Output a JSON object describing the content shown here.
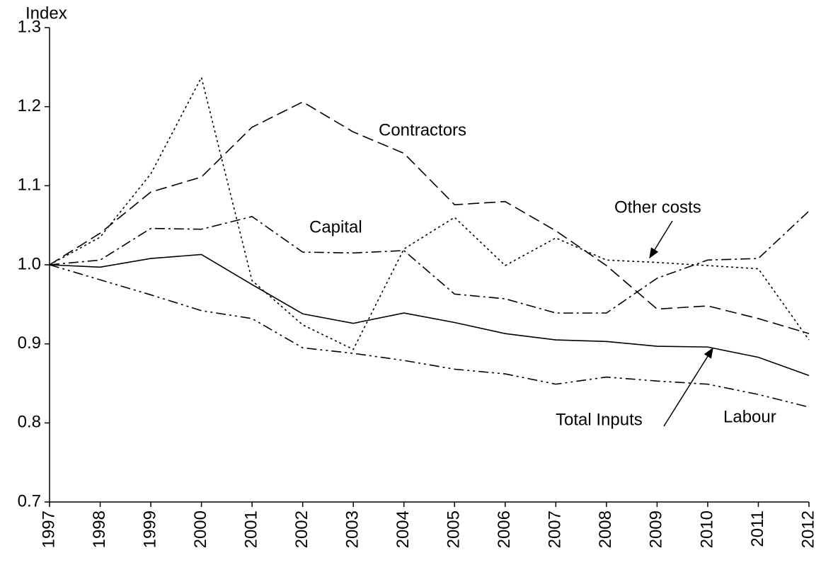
{
  "chart_data": {
    "type": "line",
    "y_axis_label": "Index",
    "categories": [
      "1997",
      "1998",
      "1999",
      "2000",
      "2001",
      "2002",
      "2003",
      "2004",
      "2005",
      "2006",
      "2007",
      "2008",
      "2009",
      "2010",
      "2011",
      "2012"
    ],
    "ylim": [
      0.7,
      1.3
    ],
    "yticks": [
      0.7,
      0.8,
      0.9,
      {
        "value": 1.0,
        "label": "1.0"
      },
      1.1,
      1.2,
      1.3
    ],
    "grid": false,
    "series": [
      {
        "name": "Total Inputs",
        "color": "#000000",
        "dash": "solid",
        "values": [
          1.0,
          0.997,
          1.008,
          1.013,
          0.975,
          0.938,
          0.926,
          0.939,
          0.927,
          0.913,
          0.905,
          0.903,
          0.897,
          0.896,
          0.883,
          0.86
        ]
      },
      {
        "name": "Labour",
        "color": "#000000",
        "dash": "dashdotdot",
        "values": [
          1.0,
          0.981,
          0.962,
          0.942,
          0.932,
          0.895,
          0.888,
          0.879,
          0.868,
          0.862,
          0.849,
          0.858,
          0.853,
          0.849,
          0.836,
          0.82
        ]
      },
      {
        "name": "Capital",
        "color": "#000000",
        "dash": "dashdot",
        "values": [
          1.0,
          1.006,
          1.046,
          1.045,
          1.061,
          1.016,
          1.015,
          1.018,
          0.963,
          0.957,
          0.939,
          0.939,
          0.983,
          1.006,
          1.008,
          1.068
        ]
      },
      {
        "name": "Contractors",
        "color": "#000000",
        "dash": "dashed",
        "values": [
          1.0,
          1.04,
          1.092,
          1.111,
          1.174,
          1.206,
          1.168,
          1.141,
          1.076,
          1.08,
          1.043,
          0.999,
          0.944,
          0.948,
          0.932,
          0.913
        ]
      },
      {
        "name": "Other costs",
        "color": "#000000",
        "dash": "dotted",
        "values": [
          1.0,
          1.035,
          1.115,
          1.237,
          0.98,
          0.924,
          0.893,
          1.02,
          1.06,
          0.999,
          1.034,
          1.006,
          1.003,
          0.999,
          0.995,
          0.905
        ]
      }
    ]
  }
}
